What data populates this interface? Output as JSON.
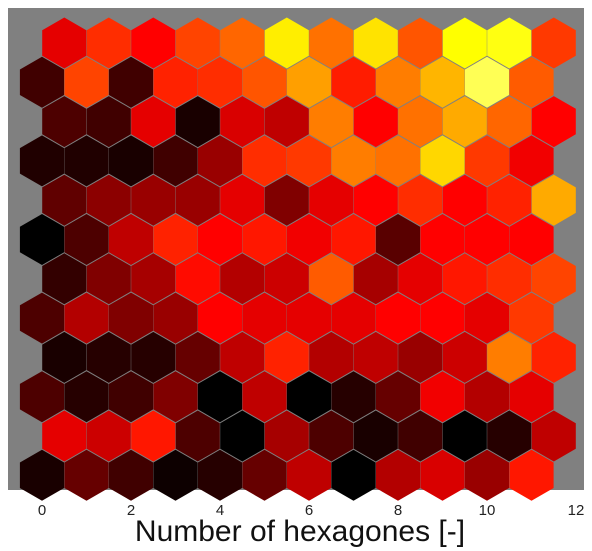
{
  "chart_data": {
    "type": "heatmap",
    "layout": "hexagonal grid (SOM neighbor-distance map)",
    "xlabel": "Number of hexagones [-]",
    "ylabel": "",
    "title": "",
    "x_ticks": [
      "0",
      "2",
      "4",
      "6",
      "8",
      "10",
      "12"
    ],
    "xlim": [
      -0.5,
      12.2
    ],
    "grid": false,
    "legend": "none",
    "colormap": "hot",
    "background_color": "#808080",
    "rows": 12,
    "cols": 12,
    "row_offset": "odd rows (counted from bottom, starting at 0) shifted right by half a hexagon",
    "values_note": "intensity per hexagon, 0 = black, 1 = white-yellow; rows listed top to bottom; no numeric scale is printed",
    "values": [
      [
        0.36,
        0.48,
        0.4,
        0.52,
        0.58,
        0.82,
        0.6,
        0.8,
        0.55,
        0.85,
        0.86,
        0.5
      ],
      [
        0.1,
        0.52,
        0.1,
        0.46,
        0.48,
        0.55,
        0.68,
        0.45,
        0.62,
        0.72,
        0.9,
        0.56
      ],
      [
        0.12,
        0.1,
        0.36,
        0.04,
        0.34,
        0.3,
        0.62,
        0.4,
        0.6,
        0.7,
        0.58,
        0.4
      ],
      [
        0.05,
        0.05,
        0.04,
        0.1,
        0.24,
        0.48,
        0.5,
        0.62,
        0.6,
        0.78,
        0.5,
        0.38
      ],
      [
        0.15,
        0.22,
        0.24,
        0.24,
        0.36,
        0.2,
        0.36,
        0.4,
        0.48,
        0.4,
        0.46,
        0.7
      ],
      [
        0.0,
        0.12,
        0.3,
        0.46,
        0.4,
        0.44,
        0.38,
        0.44,
        0.14,
        0.4,
        0.4,
        0.4
      ],
      [
        0.08,
        0.2,
        0.26,
        0.42,
        0.28,
        0.32,
        0.56,
        0.26,
        0.36,
        0.44,
        0.48,
        0.52
      ],
      [
        0.12,
        0.28,
        0.2,
        0.24,
        0.4,
        0.36,
        0.36,
        0.36,
        0.4,
        0.4,
        0.36,
        0.5
      ],
      [
        0.04,
        0.06,
        0.06,
        0.16,
        0.3,
        0.46,
        0.28,
        0.3,
        0.24,
        0.32,
        0.62,
        0.46
      ],
      [
        0.12,
        0.06,
        0.1,
        0.2,
        0.0,
        0.3,
        0.0,
        0.06,
        0.16,
        0.38,
        0.28,
        0.36
      ],
      [
        0.36,
        0.32,
        0.44,
        0.12,
        0.0,
        0.26,
        0.12,
        0.04,
        0.1,
        0.0,
        0.06,
        0.3
      ],
      [
        0.04,
        0.16,
        0.1,
        0.02,
        0.06,
        0.16,
        0.3,
        0.0,
        0.28,
        0.34,
        0.24,
        0.44
      ]
    ]
  }
}
